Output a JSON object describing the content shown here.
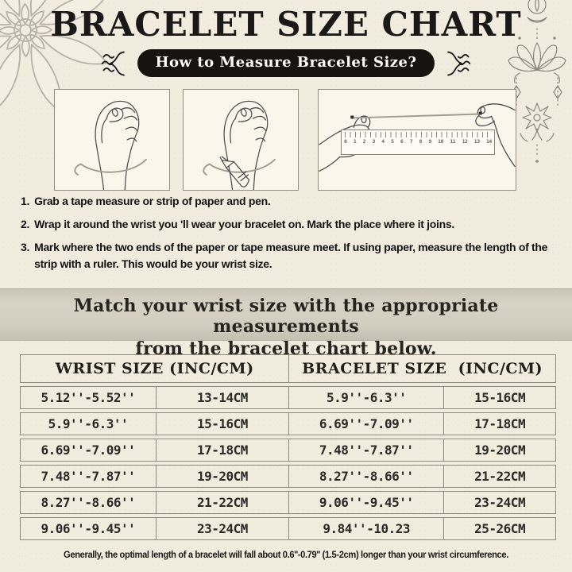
{
  "title": "BRACELET SIZE CHART",
  "badge": {
    "label": "How to Measure Bracelet Size?"
  },
  "instructions": {
    "items": [
      {
        "num": "1.",
        "text": "Grab a tape measure or strip of paper and pen."
      },
      {
        "num": "2.",
        "text": "Wrap it around the wrist you 'll wear your bracelet on. Mark the place where it joins."
      },
      {
        "num": "3.",
        "text": "Mark where the two ends of the paper or tape measure meet. If using paper, measure the length of the strip with a ruler. This would be your wrist size."
      }
    ]
  },
  "banner": {
    "line1": "Match your wrist size with the appropriate measurements",
    "line2": "from the bracelet chart below."
  },
  "size_table": {
    "header_wrist": "WRIST SIZE (INC/CM)",
    "header_bracelet": "BRACELET SIZE  (INC/CM)",
    "rows": [
      [
        "5.12''-5.52''",
        "13-14CM",
        "5.9''-6.3''",
        "15-16CM"
      ],
      [
        "5.9''-6.3''",
        "15-16CM",
        "6.69''-7.09''",
        "17-18CM"
      ],
      [
        "6.69''-7.09''",
        "17-18CM",
        "7.48''-7.87''",
        "19-20CM"
      ],
      [
        "7.48''-7.87''",
        "19-20CM",
        "8.27''-8.66''",
        "21-22CM"
      ],
      [
        "8.27''-8.66''",
        "21-22CM",
        "9.06''-9.45''",
        "23-24CM"
      ],
      [
        "9.06''-9.45''",
        "23-24CM",
        "9.84''-10.23",
        "25-26CM"
      ]
    ]
  },
  "chart_data": {
    "type": "table",
    "title": "BRACELET SIZE CHART",
    "columns": [
      "WRIST SIZE (INC)",
      "WRIST SIZE (CM)",
      "BRACELET SIZE (INC)",
      "BRACELET SIZE (CM)"
    ],
    "rows": [
      [
        "5.12''-5.52''",
        "13-14CM",
        "5.9''-6.3''",
        "15-16CM"
      ],
      [
        "5.9''-6.3''",
        "15-16CM",
        "6.69''-7.09''",
        "17-18CM"
      ],
      [
        "6.69''-7.09''",
        "17-18CM",
        "7.48''-7.87''",
        "19-20CM"
      ],
      [
        "7.48''-7.87''",
        "19-20CM",
        "8.27''-8.66''",
        "21-22CM"
      ],
      [
        "8.27''-8.66''",
        "21-22CM",
        "9.06''-9.45''",
        "23-24CM"
      ],
      [
        "9.06''-9.45''",
        "23-24CM",
        "9.84''-10.23",
        "25-26CM"
      ]
    ]
  },
  "illustrations": {
    "ruler_numbers": [
      "0",
      "1",
      "2",
      "3",
      "4",
      "5",
      "6",
      "7",
      "8",
      "9",
      "10",
      "11",
      "12",
      "13",
      "14"
    ]
  },
  "footnote": "Generally, the optimal length of a bracelet will fall about 0.6''-0.79'' (1.5-2cm) longer than your wrist circumference.",
  "colors": {
    "background": "#f2ecdf",
    "badge_bg": "#171310",
    "badge_text": "#ffffff",
    "banner_bg": "#d3cdc0",
    "table_border": "#8f8a7d",
    "ink": "#1d1b18",
    "ornament_gray": "#b6b2a8",
    "line_art": "#4c4c4c"
  }
}
